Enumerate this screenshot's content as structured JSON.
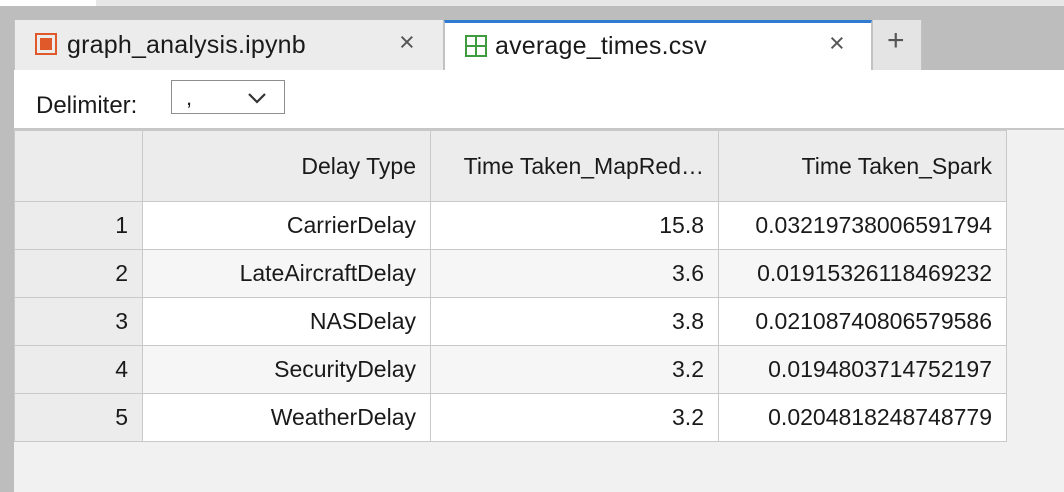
{
  "tabs": [
    {
      "title": "graph_analysis.ipynb",
      "icon": "notebook-icon",
      "close": "×",
      "active": false
    },
    {
      "title": "average_times.csv",
      "icon": "table-grid-icon",
      "close": "×",
      "active": true
    }
  ],
  "add_tab": "+",
  "toolbar": {
    "delimiter_label": "Delimiter:",
    "delimiter_value": ","
  },
  "colors": {
    "accent": "#2f7bd2",
    "notebook_icon": "#e0592a",
    "csv_icon": "#3f9b3f"
  },
  "table": {
    "headers": [
      "",
      "Delay Type",
      "Time Taken_MapRed…",
      "Time Taken_Spark"
    ],
    "rows": [
      [
        "1",
        "CarrierDelay",
        "15.8",
        "0.03219738006591794"
      ],
      [
        "2",
        "LateAircraftDelay",
        "3.6",
        "0.01915326118469232"
      ],
      [
        "3",
        "NASDelay",
        "3.8",
        "0.02108740806579586"
      ],
      [
        "4",
        "SecurityDelay",
        "3.2",
        "0.0194803714752197"
      ],
      [
        "5",
        "WeatherDelay",
        "3.2",
        "0.0204818248748779"
      ]
    ]
  }
}
